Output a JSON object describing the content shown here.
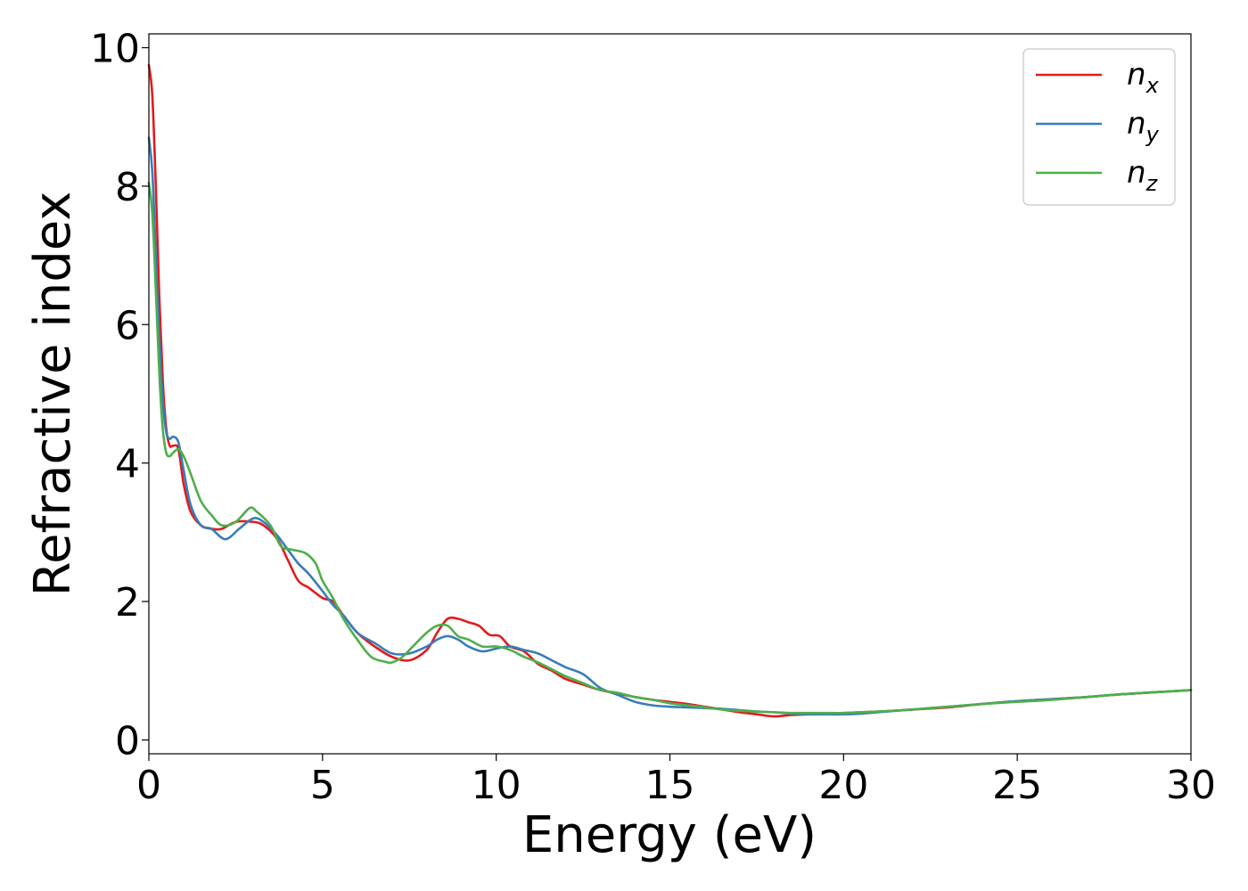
{
  "chart_data": {
    "type": "line",
    "xlabel": "Energy (eV)",
    "ylabel": "Refractive index",
    "xlim": [
      0,
      30
    ],
    "ylim": [
      -0.2,
      10.2
    ],
    "xticks": [
      0,
      5,
      10,
      15,
      20,
      25,
      30
    ],
    "yticks": [
      0,
      2,
      4,
      6,
      8,
      10
    ],
    "grid": false,
    "legend_position": "top-right",
    "series": [
      {
        "name": "n_x",
        "label_base": "n",
        "label_sub": "x",
        "color": "#e41a1c",
        "x": [
          0,
          0.1,
          0.2,
          0.3,
          0.4,
          0.5,
          0.6,
          0.7,
          0.85,
          1.0,
          1.2,
          1.5,
          1.8,
          2.1,
          2.5,
          3.0,
          3.3,
          3.7,
          4.0,
          4.3,
          4.6,
          5.0,
          5.3,
          5.6,
          6.0,
          6.5,
          7.0,
          7.5,
          8.0,
          8.3,
          8.6,
          8.9,
          9.2,
          9.5,
          9.8,
          10.1,
          10.4,
          10.8,
          11.2,
          11.6,
          12.0,
          12.5,
          13.0,
          13.5,
          14.0,
          14.5,
          15.0,
          15.5,
          16.0,
          16.5,
          17.0,
          17.5,
          18.0,
          18.5,
          19.0,
          19.5,
          20.0,
          21.0,
          22.0,
          23.0,
          24.0,
          25.0,
          26.0,
          27.0,
          28.0,
          29.0,
          30.0
        ],
        "y": [
          9.75,
          9.3,
          8.0,
          6.4,
          5.2,
          4.5,
          4.25,
          4.25,
          4.2,
          3.7,
          3.3,
          3.1,
          3.05,
          3.05,
          3.15,
          3.15,
          3.1,
          2.9,
          2.6,
          2.3,
          2.2,
          2.05,
          2.0,
          1.8,
          1.55,
          1.35,
          1.2,
          1.15,
          1.3,
          1.55,
          1.75,
          1.75,
          1.7,
          1.65,
          1.52,
          1.5,
          1.35,
          1.28,
          1.1,
          1.0,
          0.88,
          0.8,
          0.72,
          0.67,
          0.62,
          0.58,
          0.55,
          0.52,
          0.48,
          0.44,
          0.4,
          0.37,
          0.34,
          0.36,
          0.37,
          0.38,
          0.39,
          0.41,
          0.44,
          0.47,
          0.52,
          0.56,
          0.59,
          0.62,
          0.66,
          0.69,
          0.72
        ]
      },
      {
        "name": "n_y",
        "label_base": "n",
        "label_sub": "y",
        "color": "#377eb8",
        "x": [
          0,
          0.1,
          0.2,
          0.3,
          0.4,
          0.5,
          0.6,
          0.7,
          0.85,
          1.0,
          1.2,
          1.5,
          1.8,
          2.2,
          2.6,
          3.0,
          3.3,
          3.7,
          4.0,
          4.3,
          4.6,
          5.0,
          5.3,
          5.6,
          6.0,
          6.5,
          7.0,
          7.5,
          8.0,
          8.3,
          8.6,
          8.9,
          9.2,
          9.6,
          10.0,
          10.4,
          10.8,
          11.2,
          11.6,
          12.0,
          12.5,
          13.0,
          13.5,
          14.0,
          14.5,
          15.0,
          15.5,
          16.0,
          16.5,
          17.0,
          17.5,
          18.0,
          18.5,
          19.0,
          19.5,
          20.0,
          20.5,
          21.0,
          22.0,
          23.0,
          24.0,
          25.0,
          26.0,
          27.0,
          28.0,
          29.0,
          30.0
        ],
        "y": [
          8.7,
          8.2,
          7.0,
          5.8,
          4.9,
          4.45,
          4.35,
          4.38,
          4.3,
          3.9,
          3.4,
          3.1,
          3.05,
          2.9,
          3.05,
          3.2,
          3.15,
          2.95,
          2.75,
          2.55,
          2.4,
          2.15,
          1.95,
          1.8,
          1.55,
          1.4,
          1.25,
          1.25,
          1.35,
          1.45,
          1.5,
          1.45,
          1.35,
          1.28,
          1.32,
          1.35,
          1.3,
          1.25,
          1.15,
          1.05,
          0.95,
          0.75,
          0.65,
          0.55,
          0.5,
          0.48,
          0.47,
          0.46,
          0.45,
          0.43,
          0.41,
          0.4,
          0.38,
          0.37,
          0.37,
          0.37,
          0.38,
          0.4,
          0.44,
          0.48,
          0.52,
          0.56,
          0.59,
          0.62,
          0.66,
          0.69,
          0.72
        ]
      },
      {
        "name": "n_z",
        "label_base": "n",
        "label_sub": "z",
        "color": "#4daf4a",
        "x": [
          0,
          0.1,
          0.2,
          0.3,
          0.4,
          0.5,
          0.6,
          0.7,
          0.85,
          1.0,
          1.2,
          1.5,
          1.8,
          2.1,
          2.5,
          2.9,
          3.1,
          3.5,
          3.8,
          4.1,
          4.5,
          4.8,
          5.0,
          5.3,
          5.6,
          6.0,
          6.4,
          6.8,
          7.0,
          7.3,
          7.6,
          8.0,
          8.3,
          8.6,
          8.9,
          9.2,
          9.6,
          10.0,
          10.4,
          10.8,
          11.2,
          11.6,
          12.0,
          12.5,
          13.0,
          13.5,
          14.0,
          14.5,
          15.0,
          15.5,
          16.0,
          16.5,
          17.0,
          17.5,
          18.0,
          18.5,
          19.0,
          19.5,
          20.0,
          21.0,
          22.0,
          23.0,
          24.0,
          25.0,
          26.0,
          27.0,
          28.0,
          29.0,
          30.0
        ],
        "y": [
          8.05,
          7.6,
          6.5,
          5.3,
          4.5,
          4.15,
          4.1,
          4.15,
          4.2,
          4.1,
          3.85,
          3.45,
          3.25,
          3.1,
          3.15,
          3.35,
          3.3,
          3.1,
          2.8,
          2.75,
          2.7,
          2.55,
          2.3,
          2.05,
          1.75,
          1.45,
          1.2,
          1.13,
          1.12,
          1.2,
          1.35,
          1.55,
          1.65,
          1.65,
          1.5,
          1.45,
          1.35,
          1.35,
          1.3,
          1.2,
          1.12,
          1.02,
          0.92,
          0.82,
          0.72,
          0.68,
          0.62,
          0.58,
          0.53,
          0.5,
          0.47,
          0.44,
          0.42,
          0.41,
          0.4,
          0.39,
          0.39,
          0.39,
          0.39,
          0.41,
          0.44,
          0.48,
          0.52,
          0.55,
          0.58,
          0.62,
          0.66,
          0.69,
          0.72
        ]
      }
    ]
  }
}
